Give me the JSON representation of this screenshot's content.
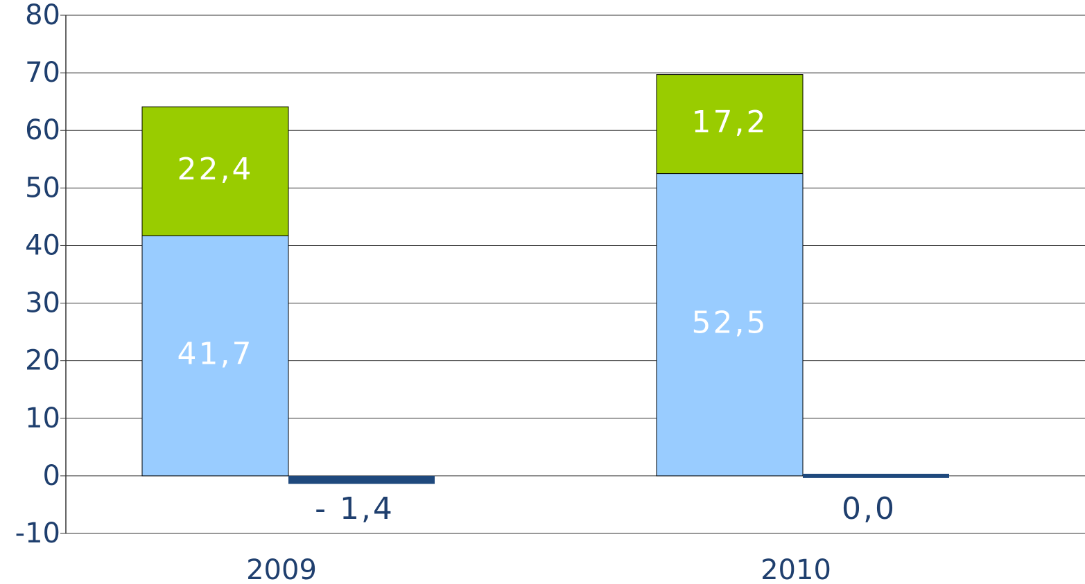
{
  "chart_data": {
    "type": "bar",
    "categories": [
      "2009",
      "2010"
    ],
    "series": [
      {
        "color": "#99ccff",
        "stack": 0,
        "values": [
          41.7,
          52.5
        ],
        "value_labels": [
          "41,7",
          "52,5"
        ]
      },
      {
        "color": "#99cc00",
        "stack": 0,
        "values": [
          22.4,
          17.2
        ],
        "value_labels": [
          "22,4",
          "17,2"
        ]
      },
      {
        "color": "#1f497d",
        "stack": 1,
        "values": [
          -1.4,
          0.0
        ],
        "value_labels": [
          "- 1,4",
          "0,0"
        ]
      }
    ],
    "ylim": [
      -10,
      80
    ],
    "yticks": [
      -10,
      0,
      10,
      20,
      30,
      40,
      50,
      60,
      70,
      80
    ],
    "grid": true
  }
}
